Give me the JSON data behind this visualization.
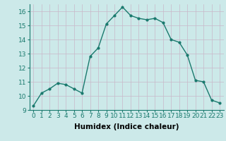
{
  "x": [
    0,
    1,
    2,
    3,
    4,
    5,
    6,
    7,
    8,
    9,
    10,
    11,
    12,
    13,
    14,
    15,
    16,
    17,
    18,
    19,
    20,
    21,
    22,
    23
  ],
  "y": [
    9.3,
    10.2,
    10.5,
    10.9,
    10.8,
    10.5,
    10.2,
    12.8,
    13.4,
    15.1,
    15.7,
    16.3,
    15.7,
    15.5,
    15.4,
    15.5,
    15.2,
    14.0,
    13.8,
    12.9,
    11.1,
    11.0,
    9.7,
    9.5
  ],
  "xlabel": "Humidex (Indice chaleur)",
  "ylim": [
    9,
    16.5
  ],
  "xlim": [
    -0.5,
    23.5
  ],
  "yticks": [
    9,
    10,
    11,
    12,
    13,
    14,
    15,
    16
  ],
  "xticks": [
    0,
    1,
    2,
    3,
    4,
    5,
    6,
    7,
    8,
    9,
    10,
    11,
    12,
    13,
    14,
    15,
    16,
    17,
    18,
    19,
    20,
    21,
    22,
    23
  ],
  "line_color": "#1a7a6e",
  "bg_color": "#cce9e9",
  "grid_color": "#b0d4d4",
  "tick_color": "#1a7a6e",
  "label_color": "#000000",
  "font_size": 6.5
}
